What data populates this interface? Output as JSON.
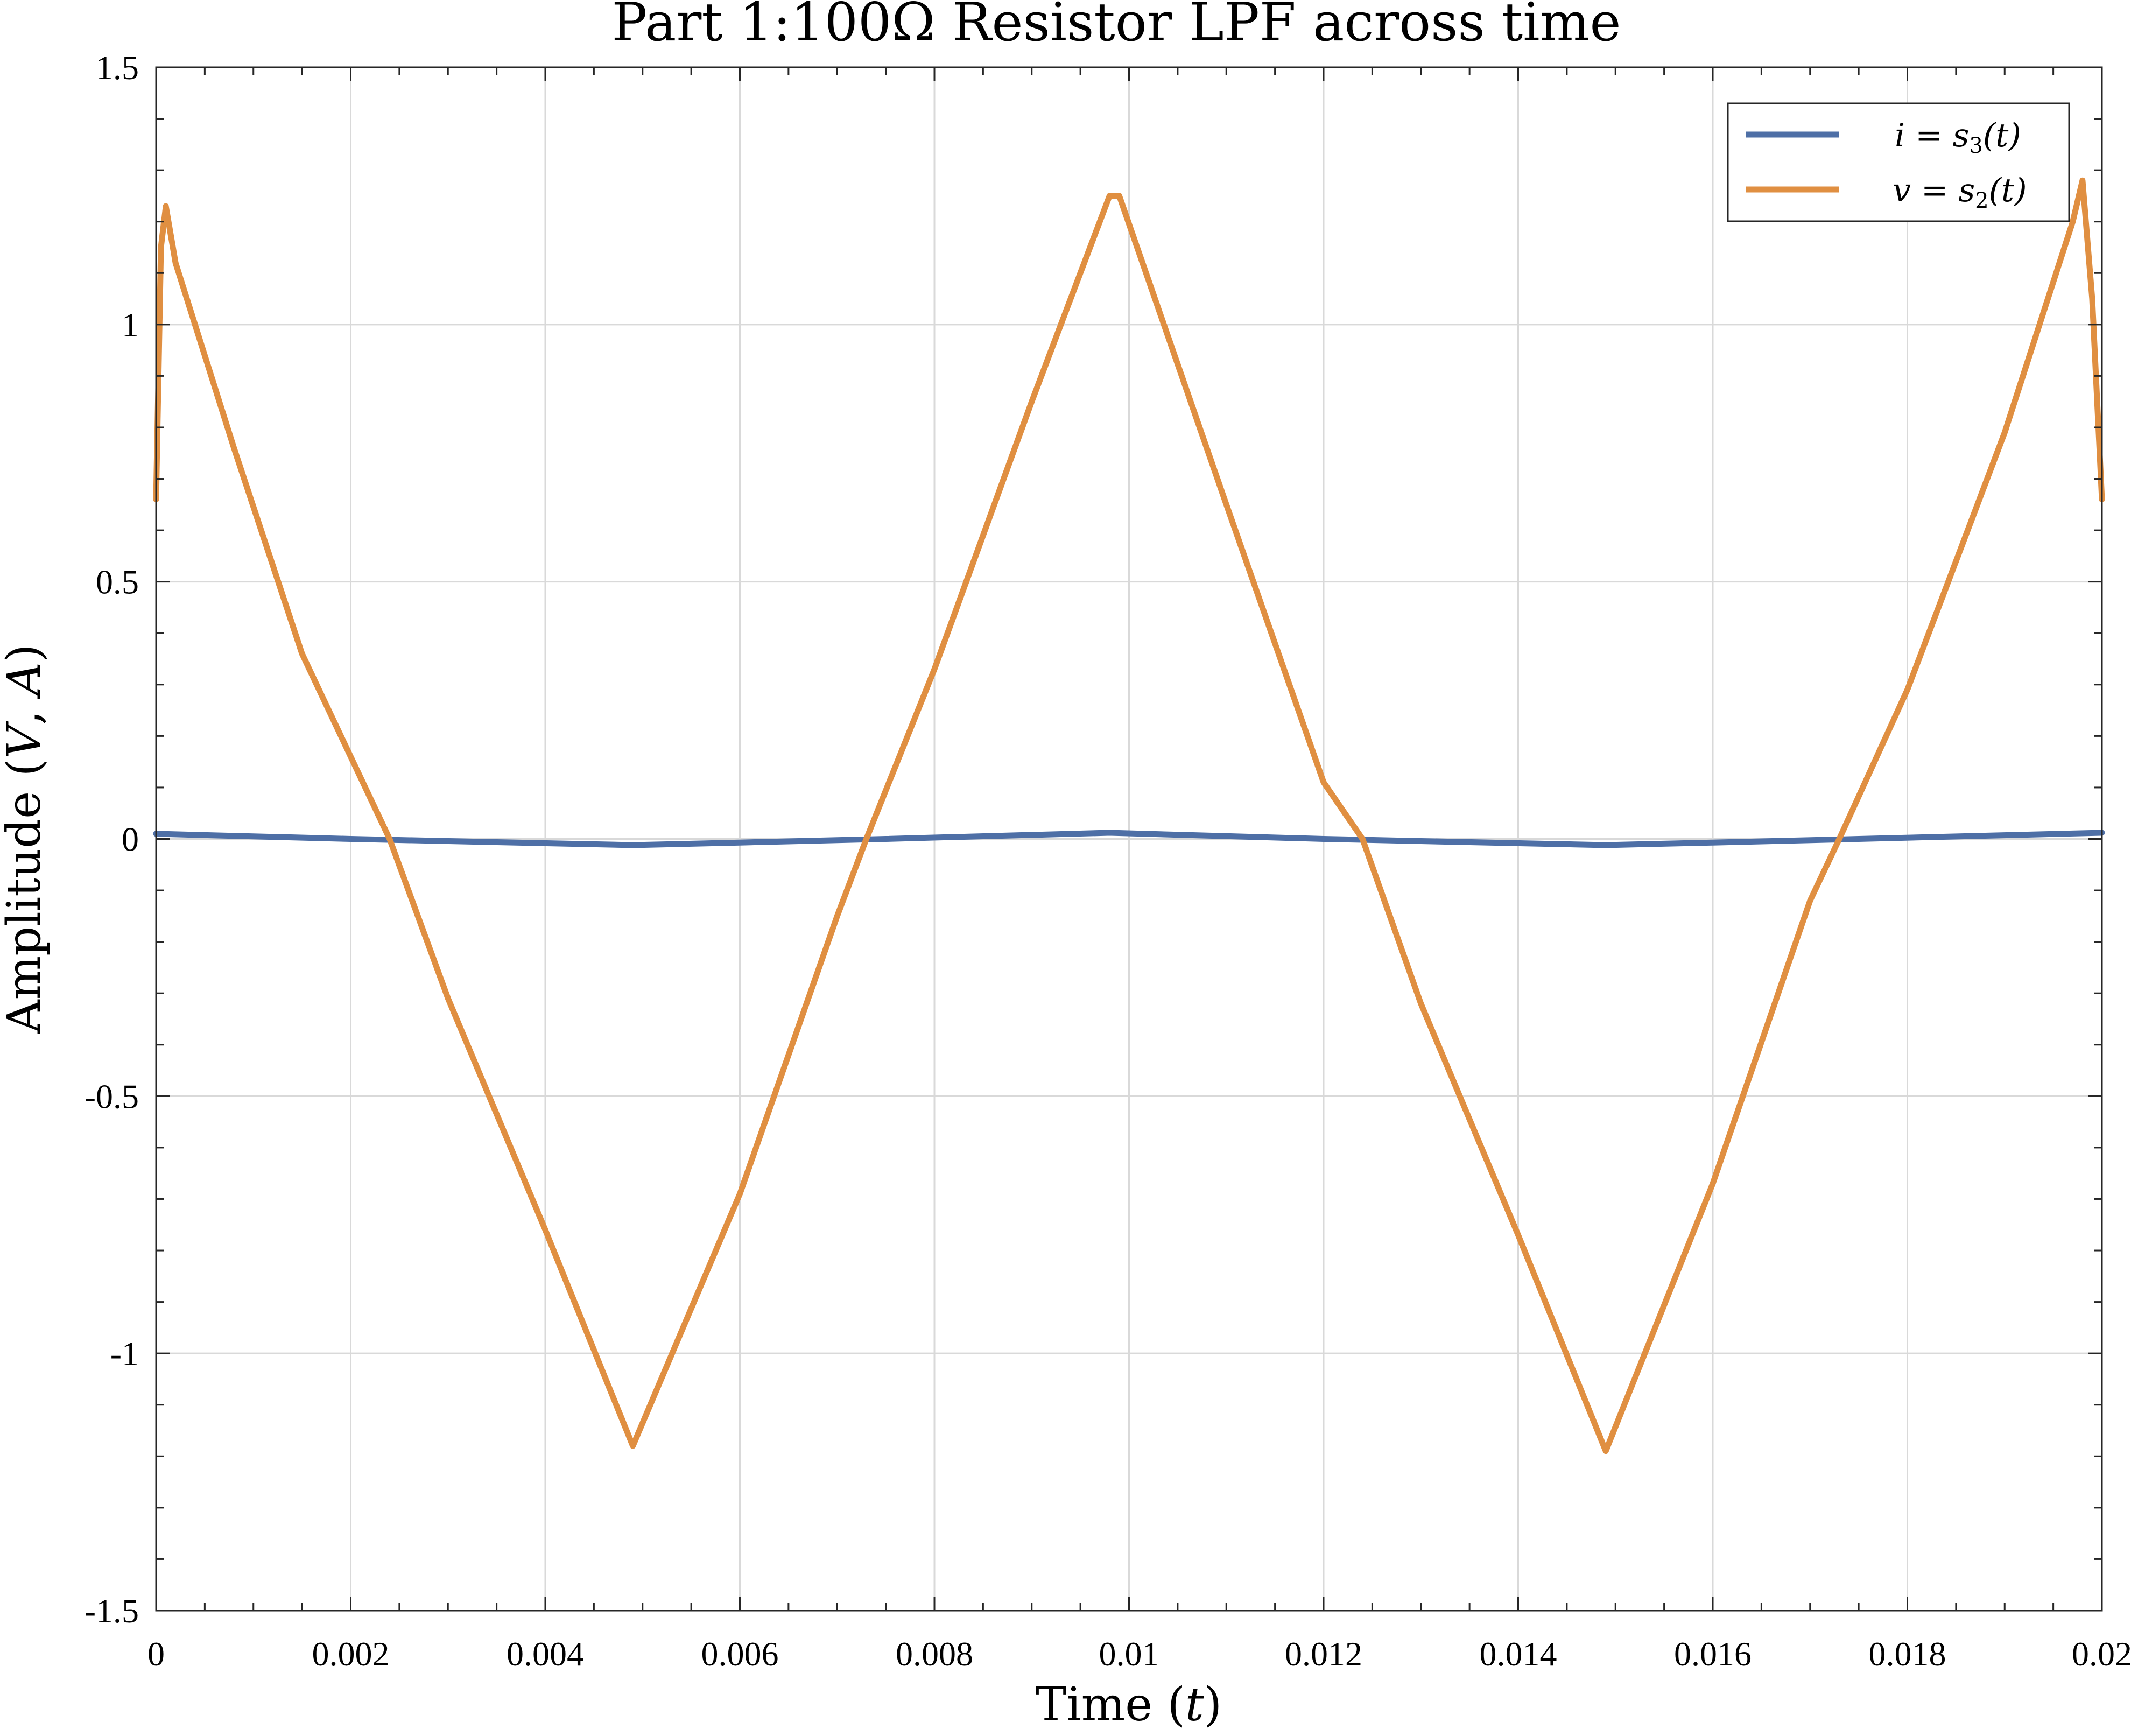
{
  "chart_data": {
    "type": "line",
    "title": "Part 1:100Ω Resistor LPF across time",
    "xlabel": {
      "text": "Time (",
      "var": "t",
      "close": ")"
    },
    "ylabel": {
      "text": "Amplitude (",
      "var1": "V",
      "sep": ", ",
      "var2": "A",
      "close": ")"
    },
    "xlim": [
      0,
      0.02
    ],
    "ylim": [
      -1.5,
      1.5
    ],
    "x_ticks": [
      0,
      0.002,
      0.004,
      0.006,
      0.008,
      0.01,
      0.012,
      0.014,
      0.016,
      0.018,
      0.02
    ],
    "x_tick_labels": [
      "0",
      "0.002",
      "0.004",
      "0.006",
      "0.008",
      "0.01",
      "0.012",
      "0.014",
      "0.016",
      "0.018",
      "0.02"
    ],
    "y_ticks": [
      -1.5,
      -1,
      -0.5,
      0,
      0.5,
      1,
      1.5
    ],
    "y_tick_labels": [
      "-1.5",
      "-1",
      "-0.5",
      "0",
      "0.5",
      "1",
      "1.5"
    ],
    "grid": true,
    "legend_position": "top-right",
    "series": [
      {
        "name": {
          "lhs": "i",
          "eq": " = ",
          "fn": "s",
          "sub": "3",
          "arg": "(t)"
        },
        "color": "#4e6fa6",
        "x": [
          0,
          0.002,
          0.0049,
          0.006,
          0.0075,
          0.0098,
          0.012,
          0.0149,
          0.016,
          0.0175,
          0.02
        ],
        "y": [
          0.01,
          0.0,
          -0.012,
          -0.007,
          0.0,
          0.012,
          0.0,
          -0.012,
          -0.007,
          0.0,
          0.012
        ]
      },
      {
        "name": {
          "lhs": "v",
          "eq": " = ",
          "fn": "s",
          "sub": "2",
          "arg": "(t)"
        },
        "color": "#e08f41",
        "x": [
          0,
          5e-05,
          0.0001,
          0.0002,
          0.0008,
          0.0015,
          0.0024,
          0.003,
          0.004,
          0.0049,
          0.006,
          0.007,
          0.0073,
          0.008,
          0.009,
          0.0098,
          0.0099,
          0.011,
          0.012,
          0.0124,
          0.013,
          0.014,
          0.0149,
          0.016,
          0.017,
          0.0173,
          0.018,
          0.019,
          0.0197,
          0.0198,
          0.0199,
          0.02
        ],
        "y": [
          0.66,
          1.15,
          1.23,
          1.12,
          0.76,
          0.36,
          0.0,
          -0.31,
          -0.76,
          -1.18,
          -0.69,
          -0.15,
          0.0,
          0.33,
          0.85,
          1.25,
          1.25,
          0.65,
          0.11,
          0.0,
          -0.32,
          -0.77,
          -1.19,
          -0.67,
          -0.12,
          0.0,
          0.29,
          0.79,
          1.2,
          1.28,
          1.05,
          0.66
        ]
      }
    ]
  }
}
